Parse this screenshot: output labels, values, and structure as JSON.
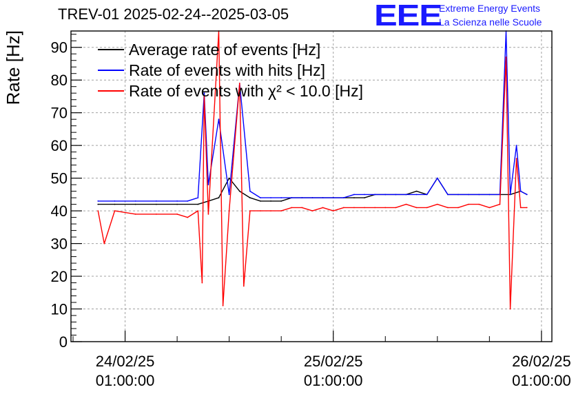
{
  "header": {
    "title": "TREV-01 2025-02-24--2025-03-05",
    "logo_mark": "EEE",
    "logo_line1": "Extreme Energy Events",
    "logo_line2": "La Scienza nelle Scuole"
  },
  "chart_data": {
    "type": "line",
    "title": "TREV-01 2025-02-24--2025-03-05",
    "xlabel": "",
    "ylabel": "Rate [Hz]",
    "ylim": [
      0,
      95
    ],
    "yticks": [
      0,
      10,
      20,
      30,
      40,
      50,
      60,
      70,
      80,
      90
    ],
    "xlim": [
      -0.26,
      2.05
    ],
    "xticks": [
      {
        "x": 0,
        "label_line1": "24/02/25",
        "label_line2": "01:00:00"
      },
      {
        "x": 1,
        "label_line1": "25/02/25",
        "label_line2": "01:00:00"
      },
      {
        "x": 2,
        "label_line1": "26/02/25",
        "label_line2": "01:00:00"
      }
    ],
    "grid": true,
    "legend_position": "top-left",
    "series": [
      {
        "name": "Average rate of events [Hz]",
        "color": "#000000",
        "x": [
          -0.13,
          -0.05,
          0.05,
          0.15,
          0.25,
          0.35,
          0.4,
          0.45,
          0.5,
          0.55,
          0.6,
          0.65,
          0.7,
          0.75,
          0.8,
          0.85,
          0.9,
          0.95,
          1.0,
          1.05,
          1.1,
          1.15,
          1.2,
          1.25,
          1.3,
          1.35,
          1.4,
          1.45,
          1.5,
          1.55,
          1.6,
          1.65,
          1.7,
          1.75,
          1.8,
          1.85,
          1.9,
          1.93
        ],
        "values": [
          42,
          42,
          42,
          42,
          42,
          42,
          43,
          44,
          50,
          46,
          44,
          43,
          43,
          43,
          44,
          44,
          44,
          44,
          44,
          44,
          44,
          44,
          45,
          45,
          45,
          45,
          46,
          45,
          50,
          45,
          45,
          45,
          45,
          45,
          45,
          45,
          46,
          45
        ]
      },
      {
        "name": "Rate of events with hits [Hz]",
        "color": "#0000ff",
        "x": [
          -0.13,
          -0.05,
          0.05,
          0.15,
          0.25,
          0.3,
          0.35,
          0.38,
          0.4,
          0.45,
          0.5,
          0.55,
          0.6,
          0.65,
          0.7,
          0.75,
          0.8,
          0.85,
          0.9,
          0.95,
          1.0,
          1.05,
          1.1,
          1.15,
          1.2,
          1.25,
          1.3,
          1.35,
          1.4,
          1.45,
          1.5,
          1.55,
          1.6,
          1.65,
          1.7,
          1.75,
          1.8,
          1.83,
          1.85,
          1.88,
          1.9,
          1.93
        ],
        "values": [
          43,
          43,
          43,
          43,
          43,
          43,
          44,
          76,
          48,
          68,
          45,
          79,
          46,
          44,
          44,
          44,
          44,
          44,
          44,
          44,
          44,
          44,
          45,
          45,
          45,
          45,
          45,
          45,
          45,
          45,
          50,
          45,
          45,
          45,
          45,
          45,
          45,
          95,
          45,
          60,
          46,
          45
        ]
      },
      {
        "name": "Rate of events with χ² < 10.0 [Hz]",
        "color": "#ff0000",
        "x": [
          -0.13,
          -0.1,
          -0.05,
          0.05,
          0.15,
          0.25,
          0.3,
          0.35,
          0.37,
          0.38,
          0.4,
          0.45,
          0.47,
          0.5,
          0.55,
          0.57,
          0.6,
          0.65,
          0.7,
          0.75,
          0.8,
          0.85,
          0.9,
          0.95,
          1.0,
          1.05,
          1.1,
          1.15,
          1.2,
          1.25,
          1.3,
          1.35,
          1.4,
          1.45,
          1.5,
          1.55,
          1.6,
          1.65,
          1.7,
          1.75,
          1.8,
          1.83,
          1.85,
          1.88,
          1.9,
          1.93
        ],
        "values": [
          40,
          30,
          40,
          39,
          39,
          39,
          38,
          40,
          18,
          75,
          39,
          95,
          11,
          40,
          79,
          17,
          40,
          40,
          40,
          40,
          41,
          41,
          40,
          41,
          40,
          41,
          41,
          41,
          41,
          41,
          41,
          42,
          41,
          41,
          42,
          41,
          41,
          42,
          42,
          41,
          42,
          87,
          10,
          56,
          41,
          41
        ]
      }
    ]
  }
}
